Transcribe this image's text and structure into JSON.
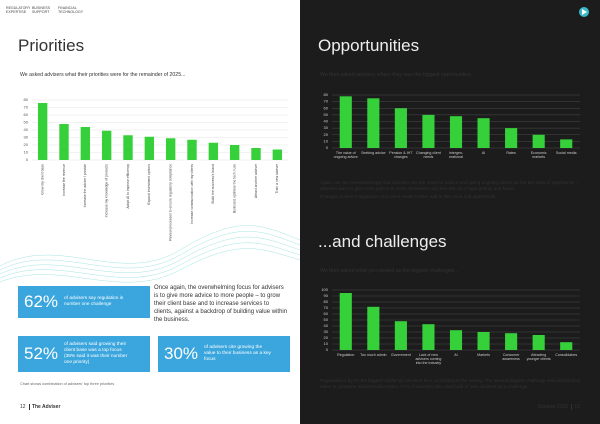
{
  "header": {
    "tags": [
      "REGULATORY EXPERTISE",
      "BUSINESS SUPPORT",
      "FINANCIAL TECHNOLOGY"
    ]
  },
  "left": {
    "title": "Priorities",
    "intro": "We asked advisers what their priorities were for the remainder of 2025...",
    "chart": {
      "type": "bar",
      "color": "#36d03a",
      "categories": [
        "Grow my client base",
        "Increase fee revenue",
        "Increase the advice I provide",
        "Increase my knowledge of products",
        "Adopt AI to improve efficiency",
        "Expand investment options",
        "Review processes to ensure regulatory compliance",
        "Increase communication with my clients",
        "Build the business's brand",
        "Build and optimise the tech I use",
        "Attract another adviser",
        "Train a new adviser"
      ],
      "values": [
        76,
        48,
        44,
        39,
        33,
        31,
        29,
        27,
        23,
        20,
        16,
        14
      ],
      "ylim": [
        0,
        80
      ],
      "yticks": [
        0,
        10,
        20,
        30,
        40,
        50,
        60,
        70,
        80
      ]
    },
    "stats": [
      {
        "figure": "62%",
        "text": "of advisers say regulation is number one challenge"
      },
      {
        "figure": "52%",
        "text": "of advisers said growing their client base was a top focus (38% said it was their number one priority)"
      },
      {
        "figure": "30%",
        "text": "of advisers cite growing the value to their business as a key focus"
      }
    ],
    "body": "Once again, the overwhelming focus for advisers is to give more advice to more people – to grow their client base and to increase services to clients, against a backdrop of building value within the business.",
    "note": "Chart shows combination of advisers' top three priorities",
    "footer": {
      "page": "12",
      "publication": "The Adviser"
    }
  },
  "right": {
    "opportunities": {
      "title": "Opportunities",
      "intro": "We then asked advisers where they saw the biggest opportunities...",
      "chart": {
        "type": "bar",
        "color": "#36d03a",
        "categories": [
          "The value of ongoing advice",
          "Seeking advice",
          "Pension & IHT changes",
          "Changing client needs",
          "Intergen-erational",
          "AI",
          "Rates",
          "Economic markets",
          "Social media"
        ],
        "values": [
          78,
          75,
          60,
          50,
          48,
          45,
          30,
          20,
          13
        ],
        "ylim": [
          0,
          80
        ],
        "yticks": [
          0,
          10,
          20,
          30,
          40,
          50,
          60,
          70,
          80
        ]
      },
      "body": [
        "Again, we see overwhelmingly that advisers see the need for advice and giving ongoing advice as the key area of opportunity – advisers want to give more advice to more consumers and see this as a huge priority and focus.",
        "Changes in recent legislation and client needs further add to this need and opportunity."
      ]
    },
    "challenges": {
      "title": "...and challenges",
      "intro": "We then asked what you viewed as the biggest challenges...",
      "chart": {
        "type": "bar",
        "color": "#36d03a",
        "categories": [
          "Regulation",
          "Too much admin",
          "Government",
          "Lack of new advisers coming into the industry",
          "AI",
          "Markets",
          "Consumer awareness",
          "Attracting younger clients",
          "Consolidators"
        ],
        "values": [
          95,
          72,
          48,
          43,
          33,
          30,
          28,
          25,
          13
        ],
        "ylim": [
          0,
          100
        ],
        "yticks": [
          0,
          10,
          20,
          30,
          40,
          50,
          60,
          70,
          80,
          90,
          100
        ]
      },
      "body": "Regulation is by far the biggest challenge advisers face, according to the survey. The second biggest challenge was around time taken to complete administrative tasks. 27% of advisers also cited lack of new advisers as a challenge."
    },
    "footer": {
      "date": "October 2025",
      "page": "13"
    }
  }
}
